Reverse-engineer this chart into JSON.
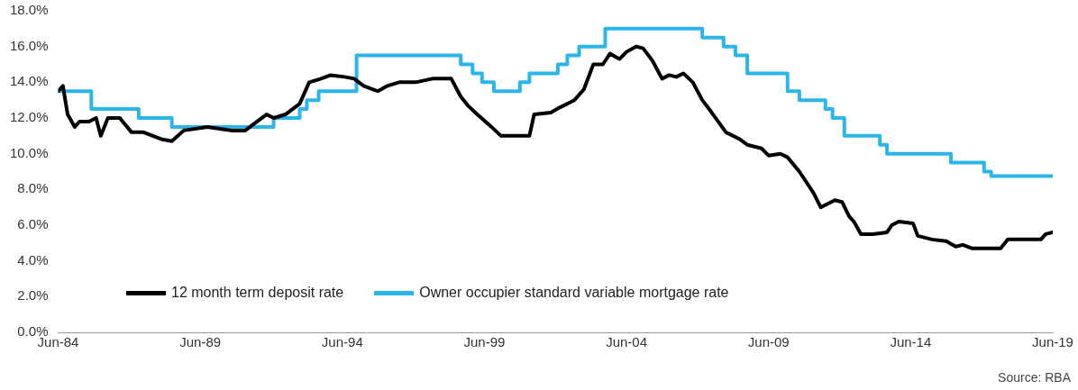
{
  "chart_data": {
    "type": "line",
    "marker": "none",
    "legend": "bottom left",
    "grid": false,
    "xlim": [
      "1984-06",
      "2019-06"
    ],
    "xticks": [
      {
        "value": "1984-06",
        "label": "Jun-84"
      },
      {
        "value": "1989-06",
        "label": "Jun-89"
      },
      {
        "value": "1994-06",
        "label": "Jun-94"
      },
      {
        "value": "1999-06",
        "label": "Jun-99"
      },
      {
        "value": "2004-06",
        "label": "Jun-04"
      },
      {
        "value": "2009-06",
        "label": "Jun-09"
      },
      {
        "value": "2014-06",
        "label": "Jun-14"
      },
      {
        "value": "2019-06",
        "label": "Jun-19"
      }
    ],
    "ylim": [
      0,
      18
    ],
    "yticks": [
      {
        "value": 0,
        "label": "0.0%"
      },
      {
        "value": 2,
        "label": "2.0%"
      },
      {
        "value": 4,
        "label": "4.0%"
      },
      {
        "value": 6,
        "label": "6.0%"
      },
      {
        "value": 8,
        "label": "8.0%"
      },
      {
        "value": 10,
        "label": "10.0%"
      },
      {
        "value": 12,
        "label": "12.0%"
      },
      {
        "value": 14,
        "label": "14.0%"
      },
      {
        "value": 16,
        "label": "16.0%"
      },
      {
        "value": 18,
        "label": "18.0%"
      }
    ],
    "annotations": [
      "Source: RBA"
    ],
    "series": [
      {
        "name": "12 month term deposit rate",
        "color": "#000000",
        "x": [
          "1984-06",
          "1984-08",
          "1984-10",
          "1985-01",
          "1985-03",
          "1985-07",
          "1985-10",
          "1985-12",
          "1986-03",
          "1986-08",
          "1987-01",
          "1987-06",
          "1988-02",
          "1988-06",
          "1988-11",
          "1989-09",
          "1990-07",
          "1991-01",
          "1991-06",
          "1991-10",
          "1992-01",
          "1992-06",
          "1992-12",
          "1993-04",
          "1993-09",
          "1994-01",
          "1994-07",
          "1994-11",
          "1995-03",
          "1995-07",
          "1995-09",
          "1996-01",
          "1996-06",
          "1997-01",
          "1997-08",
          "1998-04",
          "1998-08",
          "1998-11",
          "1999-03",
          "1999-09",
          "2000-01",
          "2001-01",
          "2001-03",
          "2001-10",
          "2002-02",
          "2002-08",
          "2002-12",
          "2003-04",
          "2003-08",
          "2003-11",
          "2004-03",
          "2004-06",
          "2004-10",
          "2005-01",
          "2005-05",
          "2005-09",
          "2005-12",
          "2006-03",
          "2006-06",
          "2006-10",
          "2007-02",
          "2007-06",
          "2007-12",
          "2008-06",
          "2008-09",
          "2009-03",
          "2009-06",
          "2009-11",
          "2010-02",
          "2010-07",
          "2011-01",
          "2011-04",
          "2011-10",
          "2012-01",
          "2012-04",
          "2012-06",
          "2012-09",
          "2013-02",
          "2013-08",
          "2013-10",
          "2014-01",
          "2014-07",
          "2014-09",
          "2015-03",
          "2015-09",
          "2016-01",
          "2016-04",
          "2016-08",
          "2017-08",
          "2017-11",
          "2019-01",
          "2019-03",
          "2019-06"
        ],
        "values": [
          13.5,
          13.8,
          12.2,
          11.5,
          11.8,
          11.8,
          12.0,
          11.0,
          12.0,
          12.0,
          11.2,
          11.2,
          10.8,
          10.7,
          11.3,
          11.5,
          11.3,
          11.3,
          11.8,
          12.2,
          12.0,
          12.2,
          12.8,
          14.0,
          14.2,
          14.4,
          14.3,
          14.2,
          13.8,
          13.6,
          13.5,
          13.8,
          14.0,
          14.0,
          14.2,
          14.2,
          13.2,
          12.7,
          12.2,
          11.5,
          11.0,
          11.0,
          12.2,
          12.3,
          12.6,
          13.0,
          13.6,
          15.0,
          15.0,
          15.6,
          15.3,
          15.7,
          16.0,
          15.9,
          15.2,
          14.2,
          14.4,
          14.3,
          14.5,
          14.0,
          13.0,
          12.3,
          11.2,
          10.8,
          10.5,
          10.3,
          9.9,
          10.0,
          9.8,
          9.0,
          7.8,
          7.0,
          7.4,
          7.3,
          6.5,
          6.2,
          5.5,
          5.5,
          5.6,
          6.0,
          6.2,
          6.1,
          5.4,
          5.2,
          5.1,
          4.8,
          4.9,
          4.7,
          4.7,
          5.2,
          5.2,
          5.5,
          5.6
        ]
      },
      {
        "name": "Owner occupier standard variable mortgage rate",
        "type": "step",
        "color": "#2bb5e8",
        "x": [
          "1984-06",
          "1985-08",
          "1987-04",
          "1988-06",
          "1992-01",
          "1992-12",
          "1993-03",
          "1993-08",
          "1994-12",
          "1998-08",
          "1999-01",
          "1999-05",
          "1999-10",
          "2000-09",
          "2001-01",
          "2002-01",
          "2002-05",
          "2002-10",
          "2003-09",
          "2007-02",
          "2007-11",
          "2008-04",
          "2008-09",
          "2010-02",
          "2010-07",
          "2011-06",
          "2011-09",
          "2012-02",
          "2013-05",
          "2013-08",
          "2015-11",
          "2017-01",
          "2017-04",
          "2019-06"
        ],
        "values": [
          13.5,
          12.5,
          12.0,
          11.5,
          12.0,
          12.5,
          13.0,
          13.5,
          15.5,
          15.0,
          14.5,
          14.0,
          13.5,
          14.0,
          14.5,
          15.0,
          15.5,
          16.0,
          17.0,
          16.5,
          16.0,
          15.5,
          14.5,
          13.5,
          13.0,
          12.5,
          12.0,
          11.0,
          10.5,
          10.0,
          9.5,
          9.0,
          8.75,
          8.75
        ]
      }
    ]
  }
}
